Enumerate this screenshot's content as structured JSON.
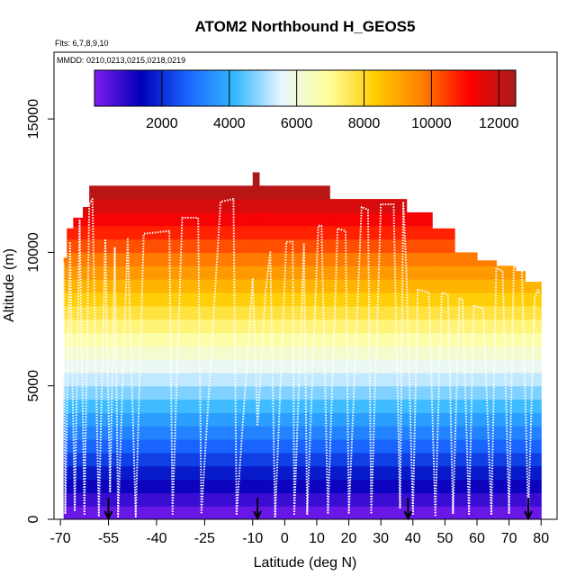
{
  "chart_data": {
    "type": "heatmap",
    "title": "ATOM2 Northbound H_GEOS5",
    "subtitle_flights": "Flts: 6,7,8,9,10",
    "subtitle_dates": "MMDD: 0210,0213,0215,0218,0219",
    "xlabel": "Latitude (deg N)",
    "ylabel": "Altitude (m)",
    "xlim": [
      -72,
      85
    ],
    "ylim": [
      0,
      17500
    ],
    "x_ticks": [
      -70,
      -55,
      -40,
      -25,
      -10,
      0,
      10,
      20,
      30,
      40,
      50,
      60,
      70,
      80
    ],
    "x_tick_labels": [
      "-70",
      "-55",
      "-40",
      "-25",
      "-10",
      "0",
      "10",
      "20",
      "30",
      "40",
      "50",
      "60",
      "70",
      "80"
    ],
    "y_ticks": [
      0,
      5000,
      10000,
      15000
    ],
    "y_tick_labels": [
      "0",
      "5000",
      "10000",
      "15000"
    ],
    "colorbar": {
      "min": 0,
      "max": 12500,
      "ticks": [
        2000,
        4000,
        6000,
        8000,
        10000,
        12000
      ],
      "tick_labels": [
        "2000",
        "4000",
        "6000",
        "8000",
        "10000",
        "12000"
      ],
      "colors": [
        "#7f1cf0",
        "#0000b8",
        "#1a66ff",
        "#33b8ff",
        "#e8f6ff",
        "#ffff99",
        "#ffcc00",
        "#ff7f00",
        "#ff0000",
        "#a81a1a"
      ]
    },
    "cell_height_m": 500,
    "ceiling_profile": [
      {
        "lat_from": -69,
        "lat_to": -68,
        "ceil": 9800
      },
      {
        "lat_from": -68,
        "lat_to": -66,
        "ceil": 10900
      },
      {
        "lat_from": -66,
        "lat_to": -63,
        "ceil": 11300
      },
      {
        "lat_from": -63,
        "lat_to": -61,
        "ceil": 11700
      },
      {
        "lat_from": -61,
        "lat_to": -10,
        "ceil": 12500
      },
      {
        "lat_from": -10,
        "lat_to": -8,
        "ceil": 13000
      },
      {
        "lat_from": -8,
        "lat_to": 14,
        "ceil": 12500
      },
      {
        "lat_from": 14,
        "lat_to": 38,
        "ceil": 12000
      },
      {
        "lat_from": 38,
        "lat_to": 46,
        "ceil": 11500
      },
      {
        "lat_from": 46,
        "lat_to": 53,
        "ceil": 10900
      },
      {
        "lat_from": 53,
        "lat_to": 60,
        "ceil": 10000
      },
      {
        "lat_from": 60,
        "lat_to": 66,
        "ceil": 9700
      },
      {
        "lat_from": 66,
        "lat_to": 72,
        "ceil": 9500
      },
      {
        "lat_from": 72,
        "lat_to": 75,
        "ceil": 9300
      },
      {
        "lat_from": 75,
        "lat_to": 80,
        "ceil": 8900
      }
    ],
    "flight_track": [
      [
        -69,
        9600
      ],
      [
        -68.5,
        200
      ],
      [
        -67,
        10400
      ],
      [
        -65.5,
        300
      ],
      [
        -64,
        11200
      ],
      [
        -62.5,
        200
      ],
      [
        -61,
        11800
      ],
      [
        -60,
        12000
      ],
      [
        -58,
        100
      ],
      [
        -56,
        10500
      ],
      [
        -54.5,
        1000
      ],
      [
        -53,
        10200
      ],
      [
        -52,
        100
      ],
      [
        -49,
        10500
      ],
      [
        -46.5,
        100
      ],
      [
        -44,
        10700
      ],
      [
        -36,
        10800
      ],
      [
        -35,
        200
      ],
      [
        -32,
        11300
      ],
      [
        -27,
        11300
      ],
      [
        -26,
        200
      ],
      [
        -20,
        11900
      ],
      [
        -16,
        12000
      ],
      [
        -15,
        200
      ],
      [
        -10,
        9000
      ],
      [
        -8.5,
        3500
      ],
      [
        -6,
        8500
      ],
      [
        -4.5,
        10000
      ],
      [
        -3,
        100
      ],
      [
        0.5,
        10400
      ],
      [
        2.5,
        10400
      ],
      [
        3,
        200
      ],
      [
        6,
        10300
      ],
      [
        7,
        200
      ],
      [
        10.5,
        11000
      ],
      [
        11.5,
        11000
      ],
      [
        13.5,
        200
      ],
      [
        16.5,
        10900
      ],
      [
        19,
        10800
      ],
      [
        20,
        200
      ],
      [
        24,
        11700
      ],
      [
        26,
        11600
      ],
      [
        27,
        200
      ],
      [
        30,
        11800
      ],
      [
        34,
        11800
      ],
      [
        36,
        400
      ],
      [
        37,
        11900
      ],
      [
        38,
        9200
      ],
      [
        40,
        200
      ],
      [
        41.5,
        8600
      ],
      [
        45,
        8500
      ],
      [
        47,
        100
      ],
      [
        49,
        8500
      ],
      [
        51,
        8400
      ],
      [
        52.5,
        200
      ],
      [
        54.5,
        8300
      ],
      [
        55.5,
        8200
      ],
      [
        57.5,
        200
      ],
      [
        59,
        8000
      ],
      [
        62,
        7900
      ],
      [
        64.5,
        200
      ],
      [
        66,
        9400
      ],
      [
        68,
        9300
      ],
      [
        70,
        200
      ],
      [
        71.5,
        9500
      ],
      [
        74,
        9400
      ],
      [
        76,
        200
      ],
      [
        78,
        8300
      ],
      [
        79,
        8600
      ],
      [
        79.5,
        8500
      ]
    ],
    "markers_lat": [
      -55,
      -8.5,
      38.5,
      76
    ]
  }
}
